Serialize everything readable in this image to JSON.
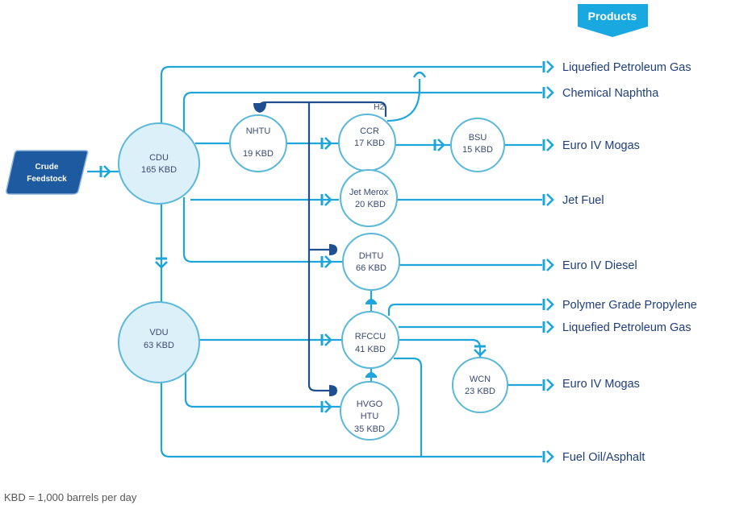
{
  "header": {
    "products_label": "Products"
  },
  "feed": {
    "line1": "Crude",
    "line2": "Feedstock"
  },
  "units": {
    "cdu": {
      "name": "CDU",
      "capacity": "165 KBD"
    },
    "nhtu": {
      "name": "NHTU",
      "capacity": "19 KBD"
    },
    "ccr": {
      "name": "CCR",
      "capacity": "17 KBD"
    },
    "bsu": {
      "name": "BSU",
      "capacity": "15 KBD"
    },
    "jet_merox": {
      "name": "Jet Merox",
      "capacity": "20 KBD"
    },
    "dhtu": {
      "name": "DHTU",
      "capacity": "66 KBD"
    },
    "rfccu": {
      "name": "RFCCU",
      "capacity": "41 KBD"
    },
    "hvgo": {
      "name1": "HVGO",
      "name2": "HTU",
      "capacity": "35 KBD"
    },
    "wcn": {
      "name": "WCN",
      "capacity": "23 KBD"
    },
    "vdu": {
      "name": "VDU",
      "capacity": "63 KBD"
    }
  },
  "h2_label": "H2",
  "products": [
    "Liquefied Petroleum Gas",
    "Chemical Naphtha",
    "Euro IV Mogas",
    "Jet Fuel",
    "Euro IV Diesel",
    "Polymer Grade Propylene",
    "Liquefied Petroleum Gas",
    "Euro IV Mogas",
    "Fuel Oil/Asphalt"
  ],
  "footnote": "KBD = 1,000 barrels per day",
  "colors": {
    "flow": "#1ea5da",
    "hydrogen": "#1f4f8f",
    "feed": "#1e5aa0",
    "banner": "#1aa8e0"
  }
}
